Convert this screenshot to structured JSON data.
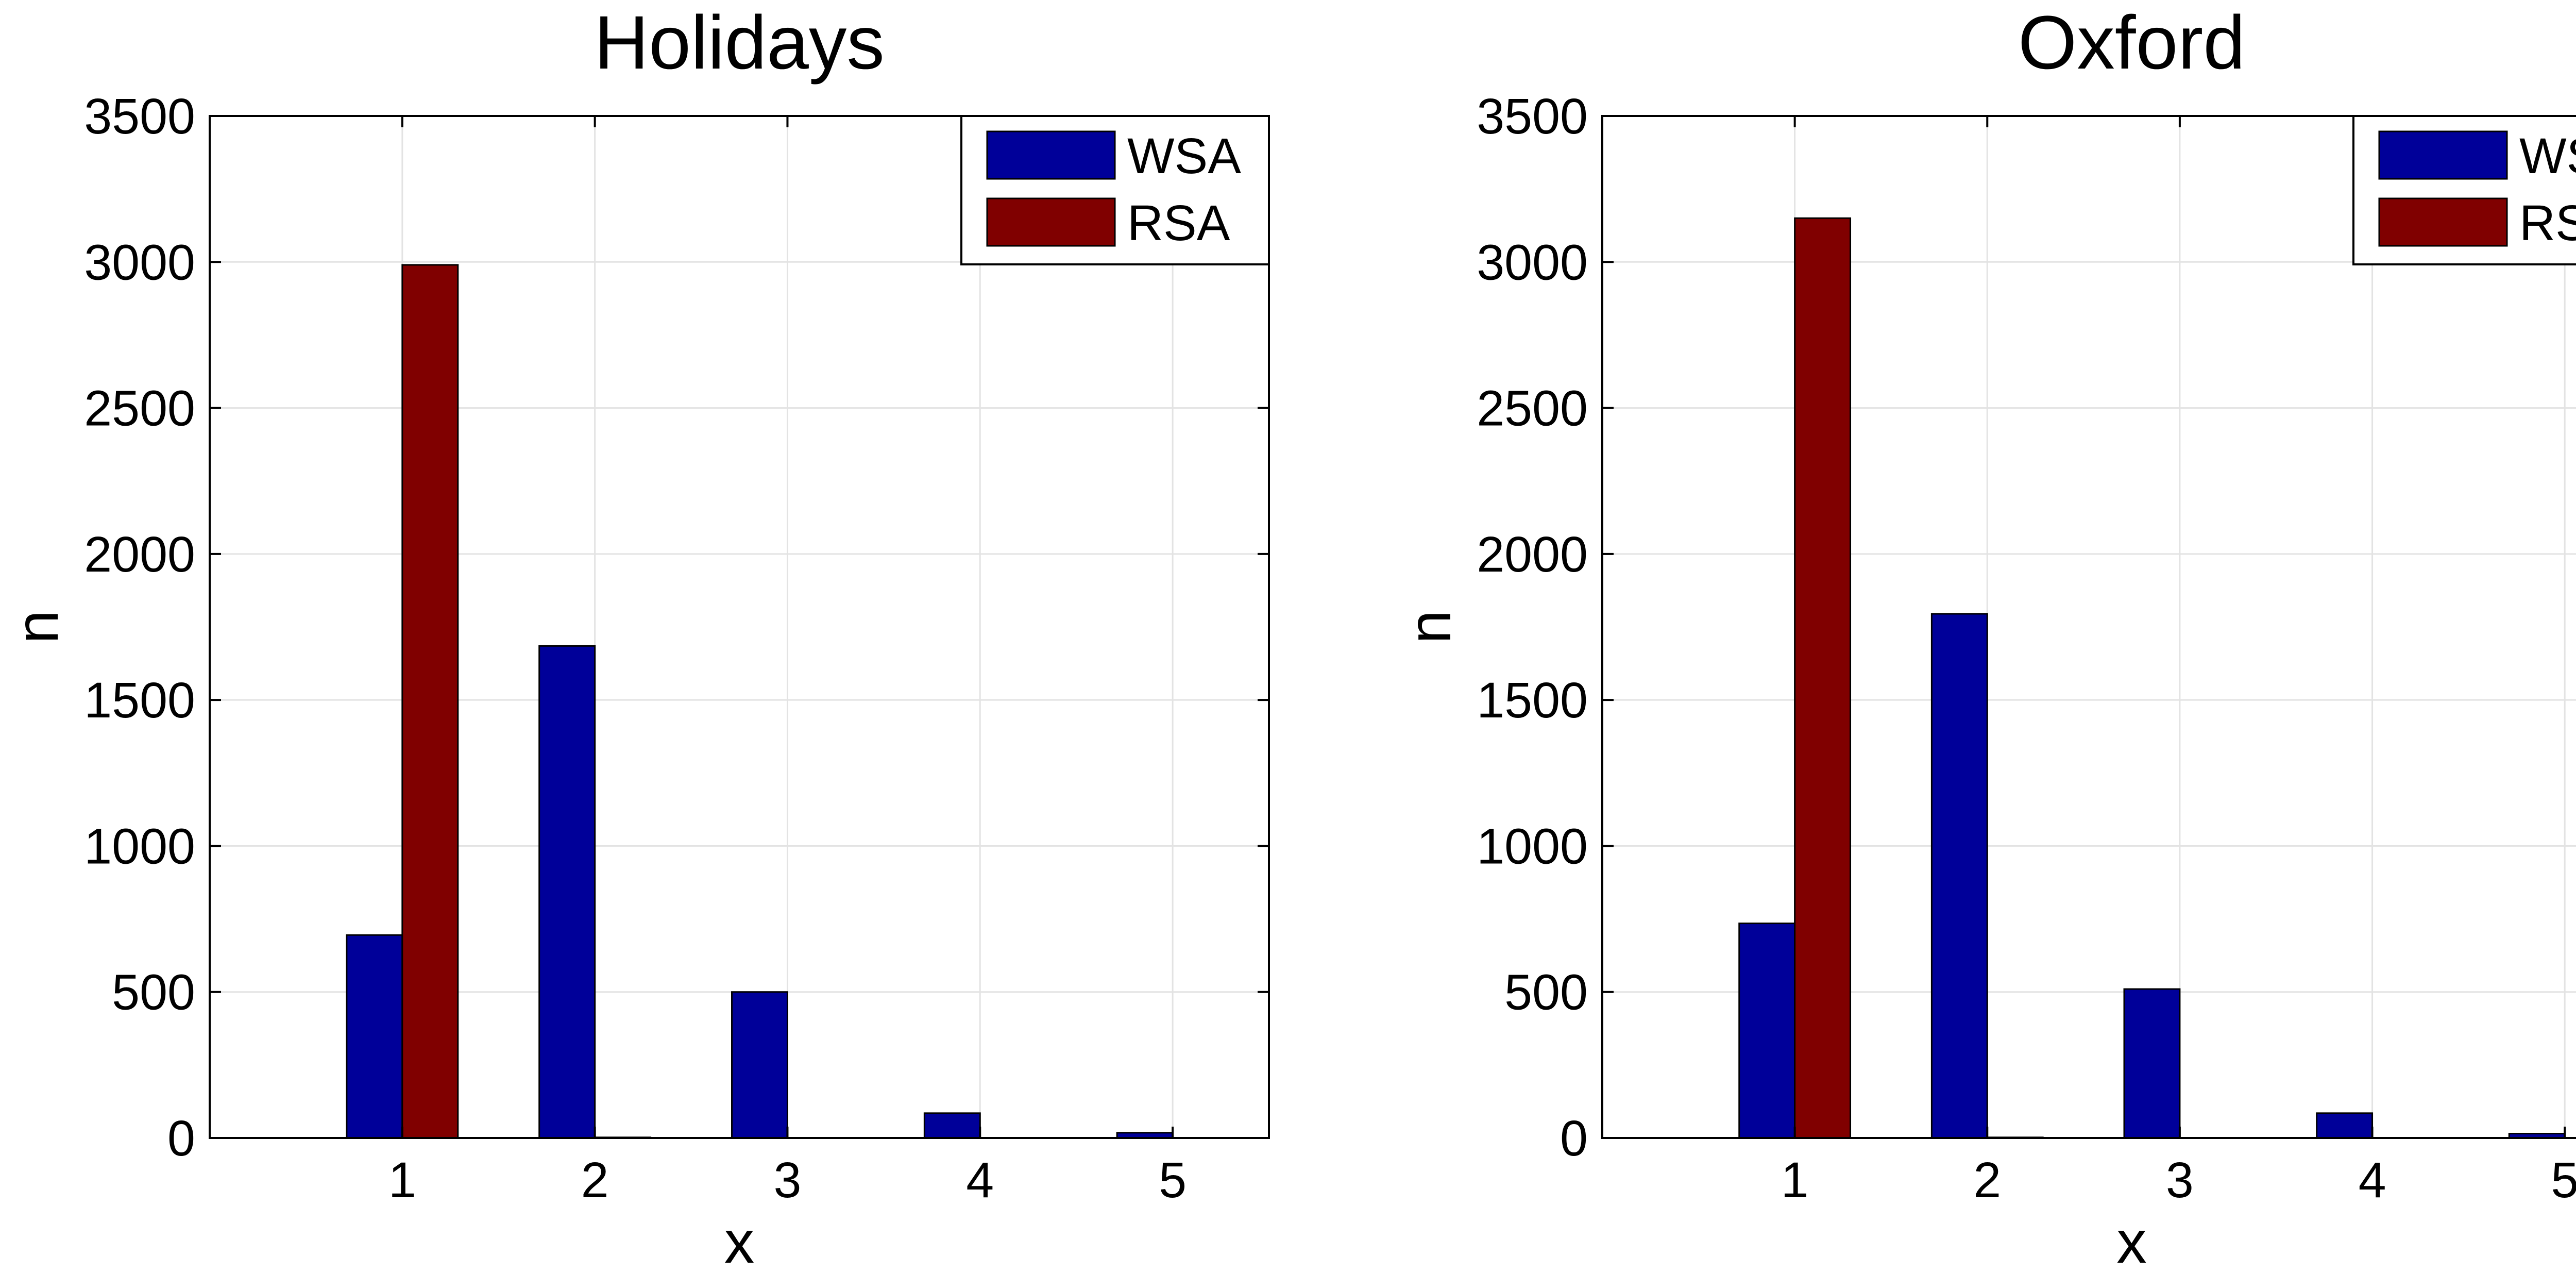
{
  "colors": {
    "WSA": "#000099",
    "RSA": "#800000"
  },
  "chart_data": [
    {
      "type": "bar",
      "title": "Holidays",
      "xlabel": "x",
      "ylabel": "n",
      "categories": [
        "1",
        "2",
        "3",
        "4",
        "5"
      ],
      "yticks": [
        "0",
        "500",
        "1000",
        "1500",
        "2000",
        "2500",
        "3000",
        "3500"
      ],
      "ylim": [
        0,
        3500
      ],
      "grid": true,
      "legend_position": "top-right",
      "series": [
        {
          "name": "WSA",
          "values": [
            695,
            1685,
            500,
            85,
            18
          ]
        },
        {
          "name": "RSA",
          "values": [
            2990,
            2,
            0,
            0,
            0
          ]
        }
      ]
    },
    {
      "type": "bar",
      "title": "Oxford",
      "xlabel": "x",
      "ylabel": "n",
      "categories": [
        "1",
        "2",
        "3",
        "4",
        "5"
      ],
      "yticks": [
        "0",
        "500",
        "1000",
        "1500",
        "2000",
        "2500",
        "3000",
        "3500"
      ],
      "ylim": [
        0,
        3500
      ],
      "grid": true,
      "legend_position": "top-right",
      "series": [
        {
          "name": "WSA",
          "values": [
            735,
            1795,
            510,
            85,
            15
          ]
        },
        {
          "name": "RSA",
          "values": [
            3150,
            2,
            0,
            0,
            0
          ]
        }
      ]
    }
  ]
}
